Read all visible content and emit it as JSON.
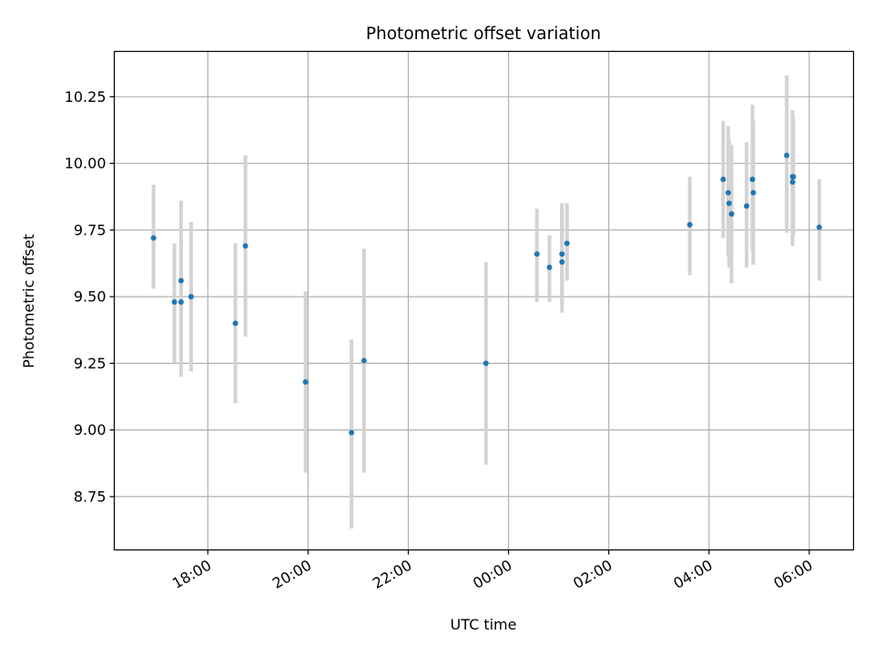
{
  "chart_data": {
    "type": "scatter",
    "title": "Photometric offset variation",
    "xlabel": "UTC time",
    "ylabel": "Photometric offset",
    "x_unit": "UTC time (HH:MM)",
    "xlim": [
      "16:08",
      "06:53"
    ],
    "ylim": [
      8.55,
      10.42
    ],
    "grid": true,
    "x_ticks": [
      "18:00",
      "20:00",
      "22:00",
      "00:00",
      "02:00",
      "04:00",
      "06:00"
    ],
    "y_ticks": [
      "8.75",
      "9.00",
      "9.25",
      "9.50",
      "9.75",
      "10.00",
      "10.25"
    ],
    "colors": {
      "marker": "#1f77b4",
      "errorbar": "#d3d3d3",
      "grid": "#b0b0b0"
    },
    "points": [
      {
        "x": "16:55",
        "y": 9.72,
        "lo": 9.53,
        "hi": 9.92
      },
      {
        "x": "17:20",
        "y": 9.48,
        "lo": 9.25,
        "hi": 9.7
      },
      {
        "x": "17:28",
        "y": 9.56,
        "lo": 9.2,
        "hi": 9.86
      },
      {
        "x": "17:28",
        "y": 9.48,
        "lo": 9.26,
        "hi": 9.68
      },
      {
        "x": "17:40",
        "y": 9.5,
        "lo": 9.22,
        "hi": 9.78
      },
      {
        "x": "18:33",
        "y": 9.4,
        "lo": 9.1,
        "hi": 9.7
      },
      {
        "x": "18:45",
        "y": 9.69,
        "lo": 9.35,
        "hi": 10.03
      },
      {
        "x": "19:57",
        "y": 9.18,
        "lo": 8.84,
        "hi": 9.52
      },
      {
        "x": "20:52",
        "y": 8.99,
        "lo": 8.63,
        "hi": 9.34
      },
      {
        "x": "21:07",
        "y": 9.26,
        "lo": 8.84,
        "hi": 9.68
      },
      {
        "x": "23:33",
        "y": 9.25,
        "lo": 8.87,
        "hi": 9.63
      },
      {
        "x": "00:34",
        "y": 9.66,
        "lo": 9.48,
        "hi": 9.83
      },
      {
        "x": "00:49",
        "y": 9.61,
        "lo": 9.48,
        "hi": 9.73
      },
      {
        "x": "01:04",
        "y": 9.63,
        "lo": 9.44,
        "hi": 9.85
      },
      {
        "x": "01:04",
        "y": 9.66,
        "lo": 9.46,
        "hi": 9.84
      },
      {
        "x": "01:10",
        "y": 9.7,
        "lo": 9.56,
        "hi": 9.85
      },
      {
        "x": "03:37",
        "y": 9.77,
        "lo": 9.58,
        "hi": 9.95
      },
      {
        "x": "04:17",
        "y": 9.94,
        "lo": 9.72,
        "hi": 10.16
      },
      {
        "x": "04:23",
        "y": 9.89,
        "lo": 9.65,
        "hi": 10.14
      },
      {
        "x": "04:24",
        "y": 9.85,
        "lo": 9.61,
        "hi": 10.09
      },
      {
        "x": "04:27",
        "y": 9.81,
        "lo": 9.55,
        "hi": 10.07
      },
      {
        "x": "04:45",
        "y": 9.84,
        "lo": 9.61,
        "hi": 10.08
      },
      {
        "x": "04:52",
        "y": 9.94,
        "lo": 9.67,
        "hi": 10.22
      },
      {
        "x": "04:53",
        "y": 9.89,
        "lo": 9.62,
        "hi": 10.16
      },
      {
        "x": "05:33",
        "y": 10.03,
        "lo": 9.74,
        "hi": 10.33
      },
      {
        "x": "05:40",
        "y": 9.95,
        "lo": 9.7,
        "hi": 10.2
      },
      {
        "x": "05:40",
        "y": 9.93,
        "lo": 9.69,
        "hi": 10.17
      },
      {
        "x": "05:41",
        "y": 9.95,
        "lo": 9.73,
        "hi": 10.17
      },
      {
        "x": "06:12",
        "y": 9.76,
        "lo": 9.56,
        "hi": 9.94
      }
    ]
  }
}
